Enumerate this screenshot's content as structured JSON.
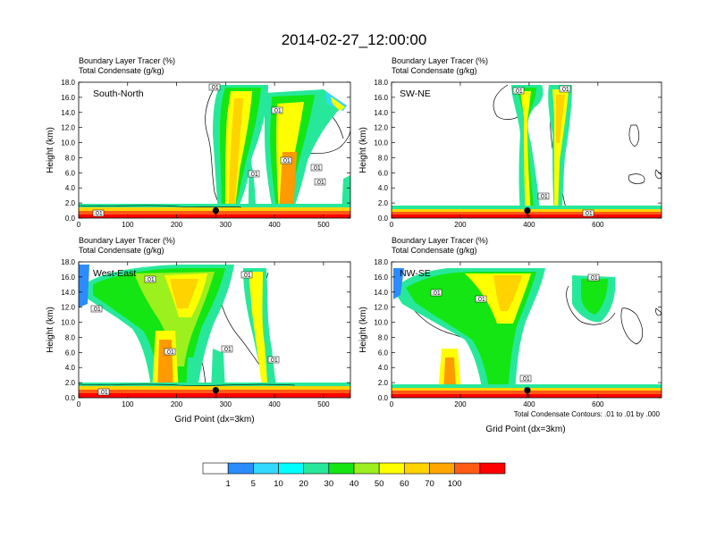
{
  "title": "2014-02-27_12:00:00",
  "footnote": "Total Condensate Contours: .01 to .01 by .000",
  "colorbar": {
    "colors": [
      "#ffffff",
      "#2a8cff",
      "#33d9ff",
      "#00ffff",
      "#27e89a",
      "#14e614",
      "#9cf01e",
      "#ffff00",
      "#ffd300",
      "#ffa500",
      "#ff5a14",
      "#ff0000"
    ],
    "labels": [
      "1",
      "5",
      "10",
      "20",
      "30",
      "40",
      "50",
      "60",
      "70",
      "100"
    ]
  },
  "chart_data": [
    {
      "type": "heatmap",
      "panel_label": "South-North",
      "left_title_line1": "Boundary Layer Tracer   (%)",
      "left_title_line2": "Total Condensate   (g/kg)",
      "xlabel": "",
      "ylabel": "Height (km)",
      "xlim": [
        0,
        555
      ],
      "ylim": [
        0,
        18
      ],
      "xticks": [
        "0",
        "100",
        "200",
        "300",
        "400",
        "500"
      ],
      "yticks": [
        "0.0",
        "2.0",
        "4.0",
        "6.0",
        "8.0",
        "10.0",
        "12.0",
        "14.0",
        "16.0",
        "18.0"
      ],
      "contour_labels": [
        ".01",
        ".01",
        ".01",
        ".01",
        ".01",
        ".01",
        ".01"
      ],
      "marker": {
        "x": 280,
        "y": 1.0
      }
    },
    {
      "type": "heatmap",
      "panel_label": "SW-NE",
      "left_title_line1": "Boundary Layer Tracer   (%)",
      "left_title_line2": "Total Condensate   (g/kg)",
      "xlabel": "",
      "ylabel": "Height (km)",
      "xlim": [
        0,
        785
      ],
      "ylim": [
        0,
        18
      ],
      "xticks": [
        "0",
        "200",
        "400",
        "600"
      ],
      "yticks": [
        "0.0",
        "2.0",
        "4.0",
        "6.0",
        "8.0",
        "10.0",
        "12.0",
        "14.0",
        "16.0",
        "18.0"
      ],
      "contour_labels": [
        ".01",
        ".01",
        ".01",
        ".01"
      ],
      "marker": {
        "x": 395,
        "y": 1.0
      }
    },
    {
      "type": "heatmap",
      "panel_label": "West-East",
      "left_title_line1": "Boundary Layer Tracer   (%)",
      "left_title_line2": "Total Condensate   (g/kg)",
      "xlabel": "Grid Point (dx=3km)",
      "ylabel": "Height (km)",
      "xlim": [
        0,
        555
      ],
      "ylim": [
        0,
        18
      ],
      "xticks": [
        "0",
        "100",
        "200",
        "300",
        "400",
        "500"
      ],
      "yticks": [
        "0.0",
        "2.0",
        "4.0",
        "6.0",
        "8.0",
        "10.0",
        "12.0",
        "14.0",
        "16.0",
        "18.0"
      ],
      "contour_labels": [
        ".01",
        ".01",
        ".01",
        ".01",
        ".01",
        ".01",
        ".01"
      ],
      "marker": {
        "x": 280,
        "y": 1.0
      }
    },
    {
      "type": "heatmap",
      "panel_label": "NW-SE",
      "left_title_line1": "Boundary Layer Tracer   (%)",
      "left_title_line2": "Total Condensate   (g/kg)",
      "xlabel": "Grid Point (dx=3km)",
      "ylabel": "Height (km)",
      "xlim": [
        0,
        785
      ],
      "ylim": [
        0,
        18
      ],
      "xticks": [
        "0",
        "200",
        "400",
        "600"
      ],
      "yticks": [
        "0.0",
        "2.0",
        "4.0",
        "6.0",
        "8.0",
        "10.0",
        "12.0",
        "14.0",
        "16.0",
        "18.0"
      ],
      "contour_labels": [
        ".01",
        ".01",
        ".01",
        ".01"
      ],
      "marker": {
        "x": 395,
        "y": 1.0
      }
    }
  ]
}
